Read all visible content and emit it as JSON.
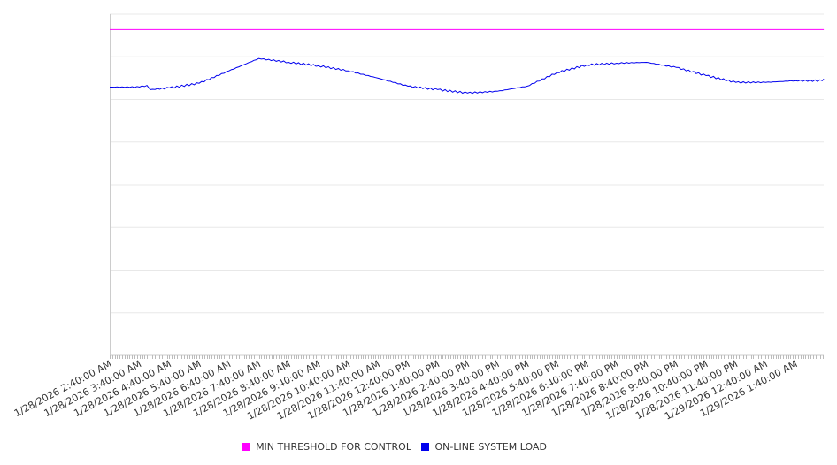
{
  "chart_data": {
    "type": "line",
    "title": "",
    "xlabel": "",
    "ylabel": "",
    "ylim": [
      0,
      8
    ],
    "y_gridlines": 8,
    "grid": true,
    "legend_position": "bottom",
    "x_tick_labels": [
      "1/28/2026 2:40:00 AM",
      "1/28/2026 3:40:00 AM",
      "1/28/2026 4:40:00 AM",
      "1/28/2026 5:40:00 AM",
      "1/28/2026 6:40:00 AM",
      "1/28/2026 7:40:00 AM",
      "1/28/2026 8:40:00 AM",
      "1/28/2026 9:40:00 AM",
      "1/28/2026 10:40:00 AM",
      "1/28/2026 11:40:00 AM",
      "1/28/2026 12:40:00 PM",
      "1/28/2026 1:40:00 PM",
      "1/28/2026 2:40:00 PM",
      "1/28/2026 3:40:00 PM",
      "1/28/2026 4:40:00 PM",
      "1/28/2026 5:40:00 PM",
      "1/28/2026 6:40:00 PM",
      "1/28/2026 7:40:00 PM",
      "1/28/2026 8:40:00 PM",
      "1/28/2026 9:40:00 PM",
      "1/28/2026 10:40:00 PM",
      "1/28/2026 11:40:00 PM",
      "1/29/2026 12:40:00 AM",
      "1/29/2026 1:40:00 AM"
    ],
    "x_range_hours": [
      0,
      23.95
    ],
    "series": [
      {
        "name": "MIN THRESHOLD FOR CONTROL",
        "color": "#ff00ff",
        "x": [
          0,
          23.95
        ],
        "values": [
          7.64,
          7.64
        ]
      },
      {
        "name": "ON-LINE SYSTEM LOAD",
        "color": "#0000ee",
        "x": [
          0,
          1,
          1.25,
          1.36,
          2,
          3,
          4,
          5,
          6,
          7,
          8,
          9,
          10,
          11,
          12,
          13,
          14,
          15,
          16,
          17,
          18,
          19,
          20,
          21,
          22,
          23,
          23.9,
          23.95
        ],
        "values": [
          6.29,
          6.29,
          6.33,
          6.23,
          6.27,
          6.38,
          6.67,
          6.96,
          6.87,
          6.79,
          6.67,
          6.5,
          6.31,
          6.23,
          6.15,
          6.19,
          6.31,
          6.63,
          6.81,
          6.85,
          6.87,
          6.75,
          6.56,
          6.4,
          6.4,
          6.44,
          6.44,
          6.48
        ]
      }
    ]
  }
}
